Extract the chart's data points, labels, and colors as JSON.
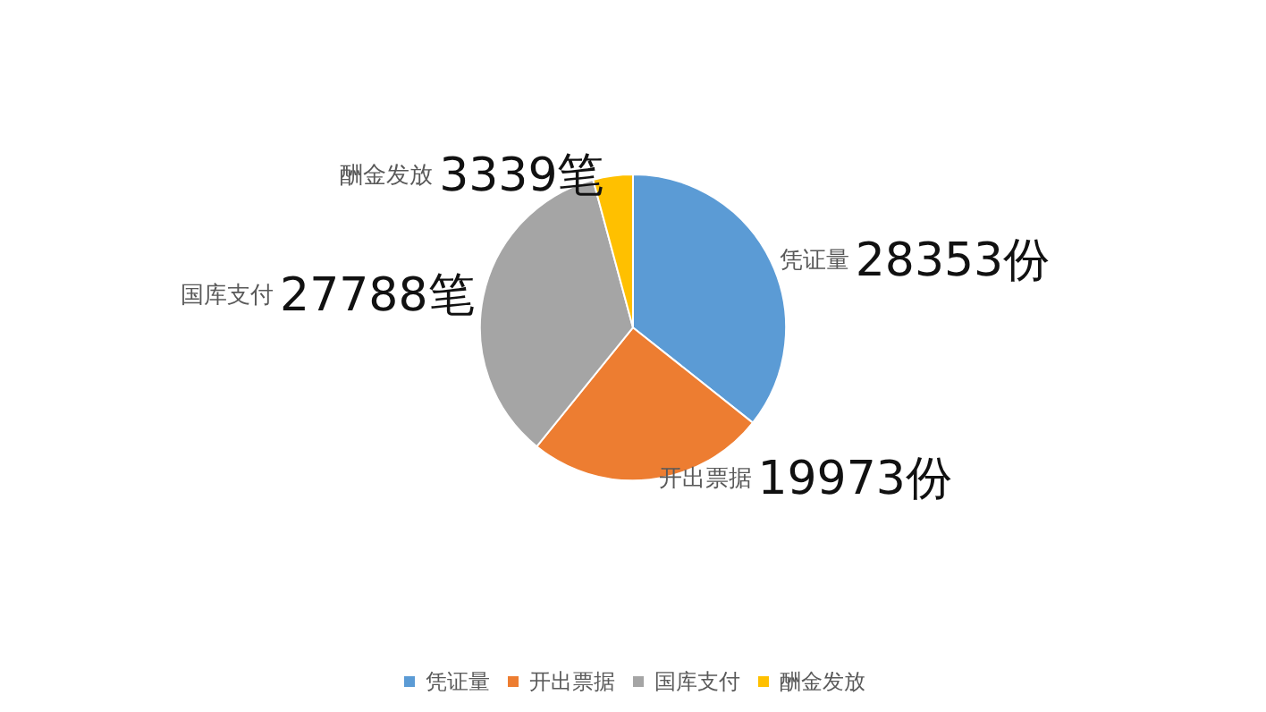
{
  "chart_data": {
    "type": "pie",
    "categories": [
      "凭证量",
      "开出票据",
      "国库支付",
      "酬金发放"
    ],
    "values": [
      28353,
      19973,
      27788,
      3339
    ],
    "value_labels": [
      "28353份",
      "19973份",
      "27788笔",
      "3339笔"
    ],
    "colors": [
      "#5b9bd5",
      "#ed7d31",
      "#a5a5a5",
      "#ffc000"
    ],
    "legend": "bottom"
  }
}
